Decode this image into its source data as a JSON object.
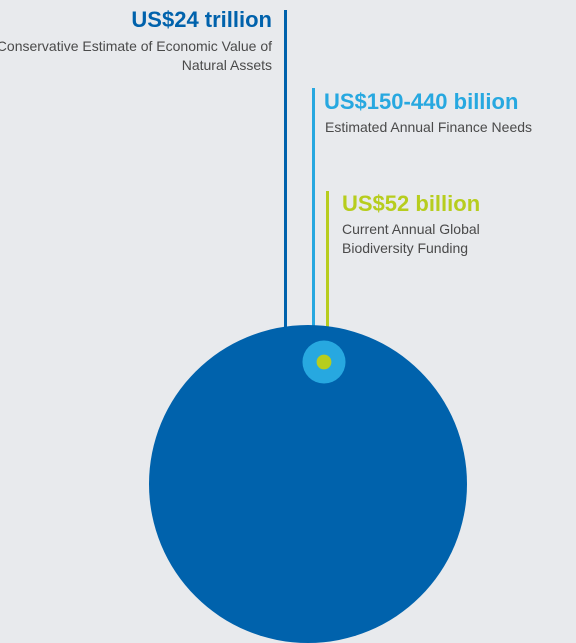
{
  "chart_data": {
    "type": "proportional-circles",
    "title": "",
    "series": [
      {
        "value_label": "US$24 trillion",
        "description": "Conservative Estimate of Economic Value of Natural Assets",
        "value": 24000,
        "unit": "billion USD",
        "color": "#0062ac"
      },
      {
        "value_label": "US$150-440 billion",
        "description": "Estimated Annual Finance Needs",
        "value": 440,
        "unit": "billion USD",
        "color": "#27a8e0"
      },
      {
        "value_label": "US$52 billion",
        "description": "Current Annual Global Biodiversity Funding",
        "value": 52,
        "unit": "billion USD",
        "color": "#b7cd1e"
      }
    ]
  }
}
